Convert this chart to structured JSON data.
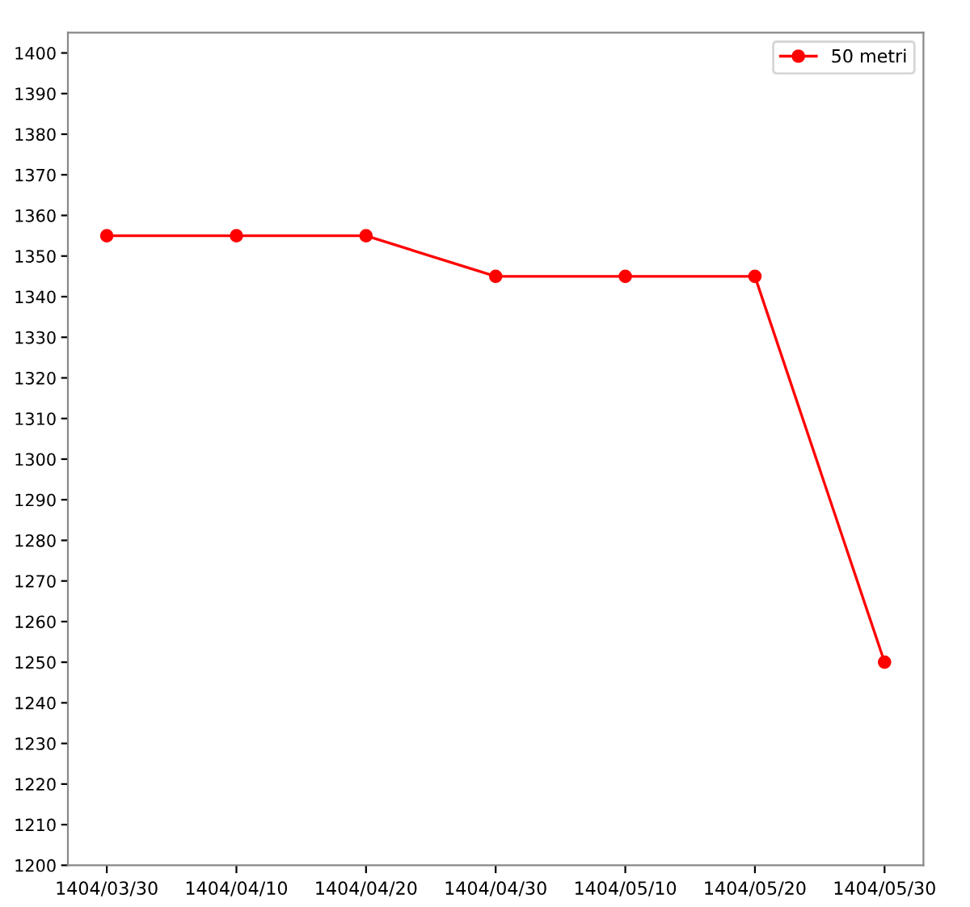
{
  "chart_data": {
    "type": "line",
    "categories": [
      "1404/03/30",
      "1404/04/10",
      "1404/04/20",
      "1404/04/30",
      "1404/05/10",
      "1404/05/20",
      "1404/05/30"
    ],
    "series": [
      {
        "name": "50 metri",
        "color": "#ff0000",
        "values": [
          1355,
          1355,
          1355,
          1345,
          1345,
          1345,
          1250
        ]
      }
    ],
    "ylim": [
      1200,
      1405
    ],
    "yticks": [
      1200,
      1210,
      1220,
      1230,
      1240,
      1250,
      1260,
      1270,
      1280,
      1290,
      1300,
      1310,
      1320,
      1330,
      1340,
      1350,
      1360,
      1370,
      1380,
      1390,
      1400
    ],
    "legend": "top right",
    "grid": false,
    "marker": "circle",
    "line_style": "solid"
  }
}
